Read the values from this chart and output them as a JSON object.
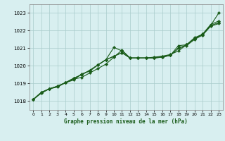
{
  "title": "Graphe pression niveau de la mer (hPa)",
  "xlabel": "Graphe pression niveau de la mer (hPa)",
  "xlim": [
    -0.5,
    23.5
  ],
  "ylim": [
    1017.5,
    1023.5
  ],
  "yticks": [
    1018,
    1019,
    1020,
    1021,
    1022,
    1023
  ],
  "xticks": [
    0,
    1,
    2,
    3,
    4,
    5,
    6,
    7,
    8,
    9,
    10,
    11,
    12,
    13,
    14,
    15,
    16,
    17,
    18,
    19,
    20,
    21,
    22,
    23
  ],
  "background_color": "#d8eff0",
  "grid_color": "#aacccc",
  "line_color": "#1a5c1a",
  "marker": "D",
  "markersize": 2.2,
  "linewidth": 0.8,
  "series": [
    [
      1018.1,
      1018.5,
      1018.7,
      1018.8,
      1019.05,
      1019.2,
      1019.55,
      1019.7,
      1020.05,
      1020.35,
      1021.05,
      1020.85,
      1020.45,
      1020.45,
      1020.45,
      1020.45,
      1020.55,
      1020.6,
      1021.15,
      1021.2,
      1021.6,
      1021.8,
      1022.3,
      1023.0
    ],
    [
      1018.1,
      1018.5,
      1018.7,
      1018.85,
      1019.05,
      1019.25,
      1019.35,
      1019.6,
      1019.85,
      1020.1,
      1020.5,
      1020.9,
      1020.45,
      1020.45,
      1020.45,
      1020.5,
      1020.55,
      1020.65,
      1020.85,
      1021.2,
      1021.55,
      1021.8,
      1022.35,
      1022.55
    ],
    [
      1018.1,
      1018.5,
      1018.7,
      1018.85,
      1019.05,
      1019.3,
      1019.5,
      1019.75,
      1020.05,
      1020.35,
      1020.55,
      1020.75,
      1020.45,
      1020.45,
      1020.45,
      1020.45,
      1020.5,
      1020.6,
      1021.0,
      1021.2,
      1021.55,
      1021.75,
      1022.3,
      1022.45
    ],
    [
      1018.1,
      1018.45,
      1018.7,
      1018.85,
      1019.05,
      1019.3,
      1019.5,
      1019.75,
      1020.05,
      1020.35,
      1020.55,
      1020.75,
      1020.45,
      1020.45,
      1020.45,
      1020.45,
      1020.5,
      1020.6,
      1021.0,
      1021.15,
      1021.5,
      1021.75,
      1022.25,
      1022.4
    ]
  ]
}
